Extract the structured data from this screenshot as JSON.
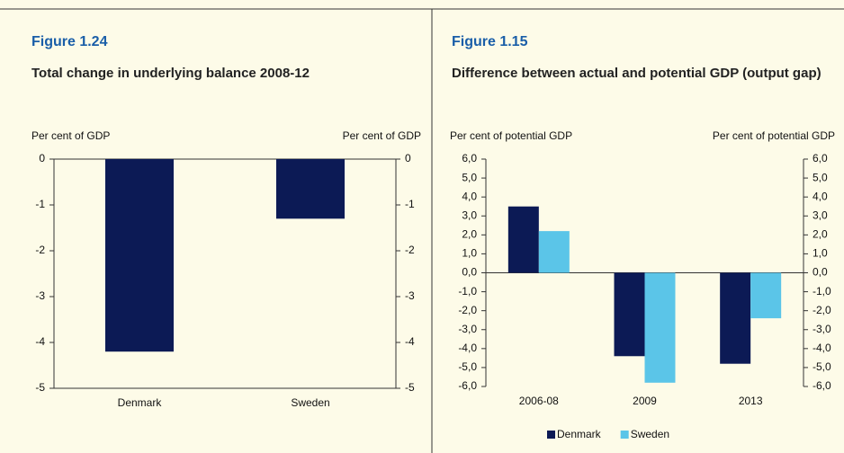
{
  "chart_data": [
    {
      "type": "bar",
      "figure_label": "Figure 1.24",
      "title": "Total change in underlying balance 2008-12",
      "ylabel": "Per cent of GDP",
      "y2label": "Per cent of GDP",
      "categories": [
        "Denmark",
        "Sweden"
      ],
      "values": [
        -4.2,
        -1.3
      ],
      "color": "#0c1a55",
      "ylim": [
        -5,
        0
      ],
      "yticks": [
        0,
        -1,
        -2,
        -3,
        -4,
        -5
      ],
      "y2lim": [
        -5,
        0
      ],
      "y2ticks": [
        0,
        -1,
        -2,
        -3,
        -4,
        -5
      ],
      "grid": false
    },
    {
      "type": "bar",
      "figure_label": "Figure 1.15",
      "title": "Difference between actual and potential GDP (output gap)",
      "ylabel": "Per cent of potential GDP",
      "y2label": "Per cent of potential GDP",
      "categories": [
        "2006-08",
        "2009",
        "2013"
      ],
      "series": [
        {
          "name": "Denmark",
          "color": "#0c1a55",
          "values": [
            3.5,
            -4.4,
            -4.8
          ]
        },
        {
          "name": "Sweden",
          "color": "#5bc5e8",
          "values": [
            2.2,
            -5.8,
            -2.4
          ]
        }
      ],
      "ylim": [
        -6,
        6
      ],
      "yticks": [
        {
          "value": 6,
          "label": "6,0"
        },
        {
          "value": 5,
          "label": "5,0"
        },
        {
          "value": 4,
          "label": "4,0"
        },
        {
          "value": 3,
          "label": "3,0"
        },
        {
          "value": 2,
          "label": "2,0"
        },
        {
          "value": 1,
          "label": "1,0"
        },
        {
          "value": 0,
          "label": "0,0"
        },
        {
          "value": -1,
          "label": "-1,0"
        },
        {
          "value": -2,
          "label": "-2,0"
        },
        {
          "value": -3,
          "label": "-3,0"
        },
        {
          "value": -4,
          "label": "-4,0"
        },
        {
          "value": -5,
          "label": "-5,0"
        },
        {
          "value": -6,
          "label": "-6,0"
        }
      ],
      "y2lim": [
        -6,
        6
      ],
      "y2ticks": [
        {
          "value": 6,
          "label": "6,0"
        },
        {
          "value": 5,
          "label": "5,0"
        },
        {
          "value": 4,
          "label": "4,0"
        },
        {
          "value": 3,
          "label": "3,0"
        },
        {
          "value": 2,
          "label": "2,0"
        },
        {
          "value": 1,
          "label": "1,0"
        },
        {
          "value": 0,
          "label": "0,0"
        },
        {
          "value": -1,
          "label": "-1,0"
        },
        {
          "value": -2,
          "label": "-2,0"
        },
        {
          "value": -3,
          "label": "-3,0"
        },
        {
          "value": -4,
          "label": "-4,0"
        },
        {
          "value": -5,
          "label": "-5,0"
        },
        {
          "value": -6,
          "label": "-6,0"
        }
      ],
      "grid": false,
      "legend": "bottom"
    }
  ]
}
